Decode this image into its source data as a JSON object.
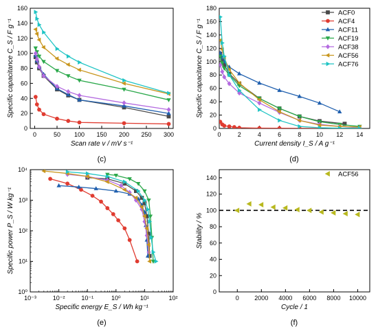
{
  "chart_data": [
    {
      "panel_label": "(c)",
      "type": "line",
      "xlabel": "Scan rate v / mV s⁻¹",
      "ylabel": "Specific capacitance C_S / F g⁻¹",
      "xlim": [
        -10,
        310
      ],
      "ylim": [
        0,
        160
      ],
      "xticks": [
        "0",
        "50",
        "100",
        "150",
        "200",
        "250",
        "300"
      ],
      "yticks": [
        "0",
        "20",
        "40",
        "60",
        "80",
        "100",
        "120",
        "140",
        "160"
      ],
      "x": [
        2,
        5,
        10,
        20,
        50,
        75,
        100,
        200,
        300
      ],
      "series": [
        {
          "name": "ACF0",
          "color": "#4a4a4a",
          "marker": "square",
          "values": [
            95,
            88,
            80,
            70,
            52,
            44,
            38,
            28,
            16
          ]
        },
        {
          "name": "ACF4",
          "color": "#e03c31",
          "marker": "circle",
          "values": [
            42,
            32,
            25,
            19,
            13,
            10,
            8,
            7,
            6
          ]
        },
        {
          "name": "ACF11",
          "color": "#1f5fae",
          "marker": "triangle-up",
          "values": [
            97,
            90,
            82,
            72,
            53,
            45,
            38,
            30,
            20
          ]
        },
        {
          "name": "ACF19",
          "color": "#2aa84a",
          "marker": "triangle-down",
          "values": [
            107,
            102,
            96,
            89,
            77,
            70,
            64,
            52,
            38
          ]
        },
        {
          "name": "ACF38",
          "color": "#b46be0",
          "marker": "diamond",
          "values": [
            100,
            92,
            82,
            70,
            56,
            49,
            44,
            34,
            25
          ]
        },
        {
          "name": "ACF56",
          "color": "#c8961e",
          "marker": "triangle-left",
          "values": [
            132,
            126,
            118,
            108,
            93,
            85,
            78,
            60,
            46
          ]
        },
        {
          "name": "ACF76",
          "color": "#1fc4c4",
          "marker": "triangle-right",
          "values": [
            155,
            146,
            138,
            128,
            106,
            96,
            88,
            64,
            47
          ]
        }
      ]
    },
    {
      "panel_label": "(d)",
      "type": "line",
      "xlabel": "Current density I_S / A g⁻¹",
      "ylabel": "Specific capacitance C_S / F g⁻¹",
      "xlim": [
        0,
        15
      ],
      "ylim": [
        0,
        180
      ],
      "xticks": [
        "0",
        "2",
        "4",
        "6",
        "8",
        "10",
        "12",
        "14"
      ],
      "yticks": [
        "0",
        "20",
        "40",
        "60",
        "80",
        "100",
        "120",
        "140",
        "160",
        "180"
      ],
      "legend_position": "top-right",
      "series": [
        {
          "name": "ACF0",
          "color": "#4a4a4a",
          "marker": "square",
          "points": [
            [
              0.1,
              112
            ],
            [
              0.3,
              102
            ],
            [
              0.5,
              95
            ],
            [
              1,
              82
            ],
            [
              2,
              67
            ],
            [
              4,
              45
            ],
            [
              6,
              30
            ],
            [
              8,
              18
            ],
            [
              10,
              11
            ],
            [
              12.5,
              7
            ]
          ]
        },
        {
          "name": "ACF4",
          "color": "#e03c31",
          "marker": "circle",
          "points": [
            [
              0.1,
              10
            ],
            [
              0.3,
              6
            ],
            [
              0.5,
              4
            ],
            [
              1,
              3
            ],
            [
              1.5,
              2
            ],
            [
              2,
              1
            ],
            [
              4,
              0.5
            ],
            [
              6,
              0.3
            ],
            [
              8,
              0.2
            ],
            [
              10,
              0.1
            ]
          ]
        },
        {
          "name": "ACF11",
          "color": "#1f5fae",
          "marker": "triangle-up",
          "points": [
            [
              0.1,
              113
            ],
            [
              0.3,
              106
            ],
            [
              0.5,
              100
            ],
            [
              1,
              92
            ],
            [
              2,
              82
            ],
            [
              4,
              68
            ],
            [
              6,
              57
            ],
            [
              8,
              48
            ],
            [
              10,
              38
            ],
            [
              12,
              25
            ]
          ]
        },
        {
          "name": "ACF19",
          "color": "#2aa84a",
          "marker": "triangle-down",
          "points": [
            [
              0.1,
              108
            ],
            [
              0.3,
              98
            ],
            [
              0.5,
              90
            ],
            [
              1,
              80
            ],
            [
              2,
              64
            ],
            [
              4,
              45
            ],
            [
              6,
              30
            ],
            [
              8,
              18
            ],
            [
              10,
              10
            ],
            [
              12,
              6
            ],
            [
              14,
              3
            ]
          ]
        },
        {
          "name": "ACF38",
          "color": "#b46be0",
          "marker": "diamond",
          "points": [
            [
              0.1,
              95
            ],
            [
              0.3,
              85
            ],
            [
              0.5,
              77
            ],
            [
              1,
              67
            ],
            [
              2,
              53
            ],
            [
              4,
              38
            ],
            [
              6,
              24
            ],
            [
              8,
              12
            ],
            [
              10,
              6
            ],
            [
              12,
              3
            ],
            [
              14,
              1
            ]
          ]
        },
        {
          "name": "ACF56",
          "color": "#c8961e",
          "marker": "triangle-left",
          "points": [
            [
              0.1,
              132
            ],
            [
              0.3,
              118
            ],
            [
              0.5,
              106
            ],
            [
              1,
              88
            ],
            [
              2,
              68
            ],
            [
              4,
              43
            ],
            [
              6,
              25
            ],
            [
              8,
              12
            ],
            [
              10,
              5
            ],
            [
              12,
              3
            ],
            [
              14,
              2
            ]
          ]
        },
        {
          "name": "ACF76",
          "color": "#1fc4c4",
          "marker": "triangle-right",
          "points": [
            [
              0.1,
              167
            ],
            [
              0.3,
              128
            ],
            [
              0.5,
              108
            ],
            [
              1,
              80
            ],
            [
              2,
              57
            ],
            [
              4,
              28
            ],
            [
              6,
              12
            ],
            [
              8,
              3
            ],
            [
              10,
              1
            ],
            [
              12,
              0.5
            ],
            [
              14,
              0.3
            ]
          ]
        }
      ]
    },
    {
      "panel_label": "(e)",
      "type": "line",
      "xlabel": "Specific energy E_S / Wh kg⁻¹",
      "ylabel": "Specific power P_S / W kg⁻¹",
      "xscale": "log",
      "yscale": "log",
      "xlim": [
        0.001,
        100
      ],
      "ylim": [
        1,
        10000
      ],
      "xticks": [
        "10⁻³",
        "10⁻²",
        "10⁻¹",
        "10⁰",
        "10¹",
        "10²"
      ],
      "yticks": [
        "10⁰",
        "10¹",
        "10²",
        "10³",
        "10⁴"
      ],
      "series": [
        {
          "name": "ACF0",
          "color": "#4a4a4a",
          "marker": "square",
          "points": [
            [
              0.1,
              5500
            ],
            [
              0.5,
              5000
            ],
            [
              2,
              3500
            ],
            [
              5,
              2000
            ],
            [
              8,
              1200
            ],
            [
              10,
              800
            ],
            [
              12,
              300
            ],
            [
              14,
              80
            ],
            [
              15,
              15
            ]
          ]
        },
        {
          "name": "ACF4",
          "color": "#e03c31",
          "marker": "circle",
          "points": [
            [
              0.005,
              5000
            ],
            [
              0.02,
              3500
            ],
            [
              0.06,
              2200
            ],
            [
              0.15,
              1400
            ],
            [
              0.3,
              900
            ],
            [
              0.5,
              550
            ],
            [
              0.8,
              350
            ],
            [
              1.2,
              220
            ],
            [
              2,
              120
            ],
            [
              3,
              50
            ],
            [
              5.5,
              10
            ]
          ]
        },
        {
          "name": "ACF11",
          "color": "#1f5fae",
          "marker": "triangle-up",
          "points": [
            [
              0.01,
              3000
            ],
            [
              0.05,
              2700
            ],
            [
              0.2,
              2400
            ],
            [
              1,
              2000
            ],
            [
              3,
              1600
            ],
            [
              6,
              1100
            ],
            [
              8,
              700
            ],
            [
              10,
              400
            ],
            [
              11,
              150
            ],
            [
              12,
              50
            ],
            [
              13,
              15
            ]
          ]
        },
        {
          "name": "ACF19",
          "color": "#2aa84a",
          "marker": "triangle-down",
          "points": [
            [
              0.5,
              7000
            ],
            [
              1,
              6500
            ],
            [
              3,
              5000
            ],
            [
              6,
              3500
            ],
            [
              10,
              2000
            ],
            [
              14,
              1000
            ],
            [
              16,
              300
            ],
            [
              18,
              60
            ],
            [
              20,
              10
            ]
          ]
        },
        {
          "name": "ACF38",
          "color": "#b46be0",
          "marker": "diamond",
          "points": [
            [
              0.02,
              7000
            ],
            [
              0.1,
              6000
            ],
            [
              0.5,
              4500
            ],
            [
              1.5,
              3000
            ],
            [
              3,
              1800
            ],
            [
              5,
              1000
            ],
            [
              8,
              500
            ],
            [
              10,
              200
            ],
            [
              12,
              70
            ],
            [
              14,
              20
            ]
          ]
        },
        {
          "name": "ACF56",
          "color": "#c8961e",
          "marker": "triangle-left",
          "points": [
            [
              0.003,
              9000
            ],
            [
              0.02,
              7500
            ],
            [
              0.1,
              6000
            ],
            [
              0.5,
              4000
            ],
            [
              2,
              2200
            ],
            [
              5,
              1200
            ],
            [
              8,
              600
            ],
            [
              10,
              300
            ],
            [
              12,
              120
            ],
            [
              14,
              35
            ],
            [
              15,
              10
            ]
          ]
        },
        {
          "name": "ACF76",
          "color": "#1fc4c4",
          "marker": "triangle-right",
          "points": [
            [
              0.02,
              8500
            ],
            [
              0.1,
              7500
            ],
            [
              0.5,
              6000
            ],
            [
              2,
              4000
            ],
            [
              6,
              2000
            ],
            [
              10,
              1000
            ],
            [
              13,
              500
            ],
            [
              15,
              200
            ],
            [
              17,
              60
            ],
            [
              20,
              20
            ],
            [
              25,
              10
            ]
          ]
        }
      ]
    },
    {
      "panel_label": "(f)",
      "type": "scatter",
      "xlabel": "Cycle / 1",
      "ylabel": "Stability / %",
      "xlim": [
        -1500,
        11000
      ],
      "ylim": [
        0,
        150
      ],
      "xticks": [
        "0",
        "2000",
        "4000",
        "6000",
        "8000",
        "10000"
      ],
      "yticks": [
        "0",
        "20",
        "40",
        "60",
        "80",
        "100",
        "120",
        "140"
      ],
      "reference_line": 100,
      "legend_position": "top-right",
      "series": [
        {
          "name": "ACF56",
          "color": "#b8b81e",
          "marker": "triangle-left",
          "points": [
            [
              0,
              100
            ],
            [
              1000,
              108
            ],
            [
              2000,
              107
            ],
            [
              3000,
              104
            ],
            [
              4000,
              103
            ],
            [
              5000,
              101
            ],
            [
              6000,
              100
            ],
            [
              7000,
              98
            ],
            [
              8000,
              97
            ],
            [
              9000,
              96
            ],
            [
              10000,
              95
            ]
          ]
        }
      ]
    }
  ]
}
